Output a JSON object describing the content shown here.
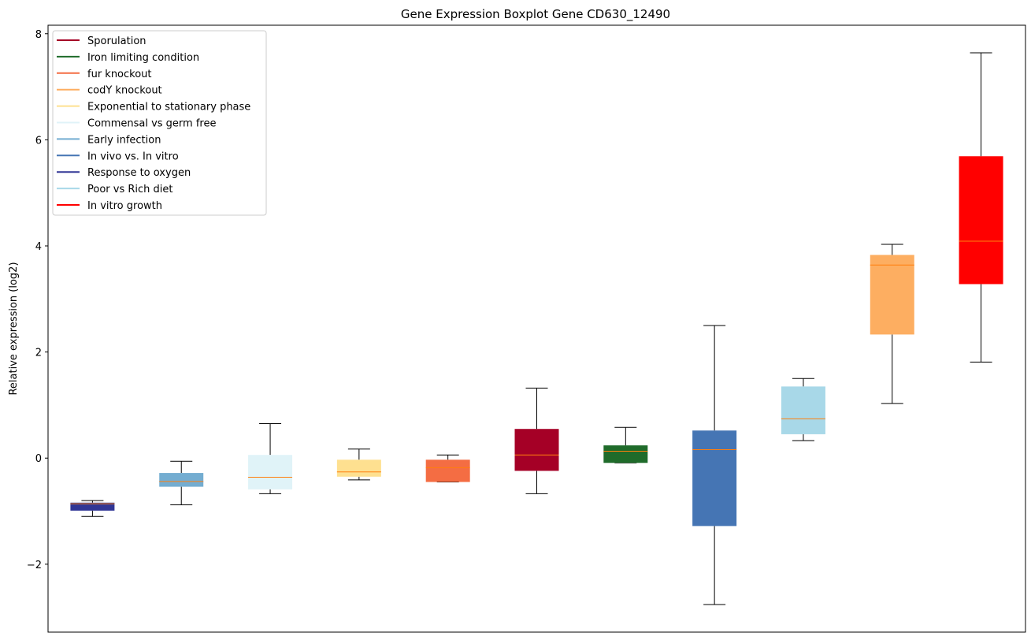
{
  "chart_data": {
    "type": "box",
    "title": "Gene Expression Boxplot Gene CD630_12490",
    "xlabel": "",
    "ylabel": "Relative expression (log2)",
    "ylim": [
      -3.28,
      8.16
    ],
    "yticks": [
      -2,
      0,
      2,
      4,
      6,
      8
    ],
    "ytick_labels": [
      "−2",
      "0",
      "2",
      "4",
      "6",
      "8"
    ],
    "grid": false,
    "legend_position": "top-left",
    "median_color": "#ff7f0e",
    "legend": [
      {
        "label": "Sporulation",
        "color": "#a50026"
      },
      {
        "label": "Iron limiting condition",
        "color": "#1f6b2a"
      },
      {
        "label": "fur knockout",
        "color": "#f46d43"
      },
      {
        "label": "codY knockout",
        "color": "#fdae61"
      },
      {
        "label": "Exponential to stationary phase",
        "color": "#fee090"
      },
      {
        "label": "Commensal vs germ free",
        "color": "#e0f3f8"
      },
      {
        "label": "Early infection",
        "color": "#74add1"
      },
      {
        "label": "In vivo vs. In vitro",
        "color": "#4575b4"
      },
      {
        "label": "Response to oxygen",
        "color": "#313695"
      },
      {
        "label": "Poor vs Rich diet",
        "color": "#a8d8e8"
      },
      {
        "label": "In vitro growth",
        "color": "#ff0000"
      }
    ],
    "boxes": [
      {
        "series": "Response to oxygen",
        "color": "#313695",
        "whislo": -1.1,
        "q1": -0.99,
        "med": -0.86,
        "q3": -0.84,
        "whishi": -0.8
      },
      {
        "series": "Early infection",
        "color": "#74add1",
        "whislo": -0.88,
        "q1": -0.54,
        "med": -0.44,
        "q3": -0.28,
        "whishi": -0.06
      },
      {
        "series": "Commensal vs germ free",
        "color": "#e0f3f8",
        "whislo": -0.67,
        "q1": -0.59,
        "med": -0.36,
        "q3": 0.06,
        "whishi": 0.65
      },
      {
        "series": "Exponential to stationary phase",
        "color": "#fee090",
        "whislo": -0.41,
        "q1": -0.35,
        "med": -0.26,
        "q3": -0.03,
        "whishi": 0.17
      },
      {
        "series": "fur knockout",
        "color": "#f46d43",
        "whislo": -0.45,
        "q1": -0.45,
        "med": -0.18,
        "q3": -0.03,
        "whishi": 0.06
      },
      {
        "series": "Sporulation",
        "color": "#a50026",
        "whislo": -0.67,
        "q1": -0.24,
        "med": 0.06,
        "q3": 0.55,
        "whishi": 1.32
      },
      {
        "series": "Iron limiting condition",
        "color": "#1f6b2a",
        "whislo": -0.09,
        "q1": -0.09,
        "med": 0.13,
        "q3": 0.24,
        "whishi": 0.58
      },
      {
        "series": "In vivo vs. In vitro",
        "color": "#4575b4",
        "whislo": -2.76,
        "q1": -1.28,
        "med": 0.16,
        "q3": 0.52,
        "whishi": 2.5
      },
      {
        "series": "Poor vs Rich diet",
        "color": "#a8d8e8",
        "whislo": 0.33,
        "q1": 0.45,
        "med": 0.74,
        "q3": 1.35,
        "whishi": 1.5
      },
      {
        "series": "codY knockout",
        "color": "#fdae61",
        "whislo": 1.03,
        "q1": 2.33,
        "med": 3.64,
        "q3": 3.83,
        "whishi": 4.03
      },
      {
        "series": "In vitro growth",
        "color": "#ff0000",
        "whislo": 1.81,
        "q1": 3.28,
        "med": 4.09,
        "q3": 5.69,
        "whishi": 7.64
      }
    ]
  }
}
